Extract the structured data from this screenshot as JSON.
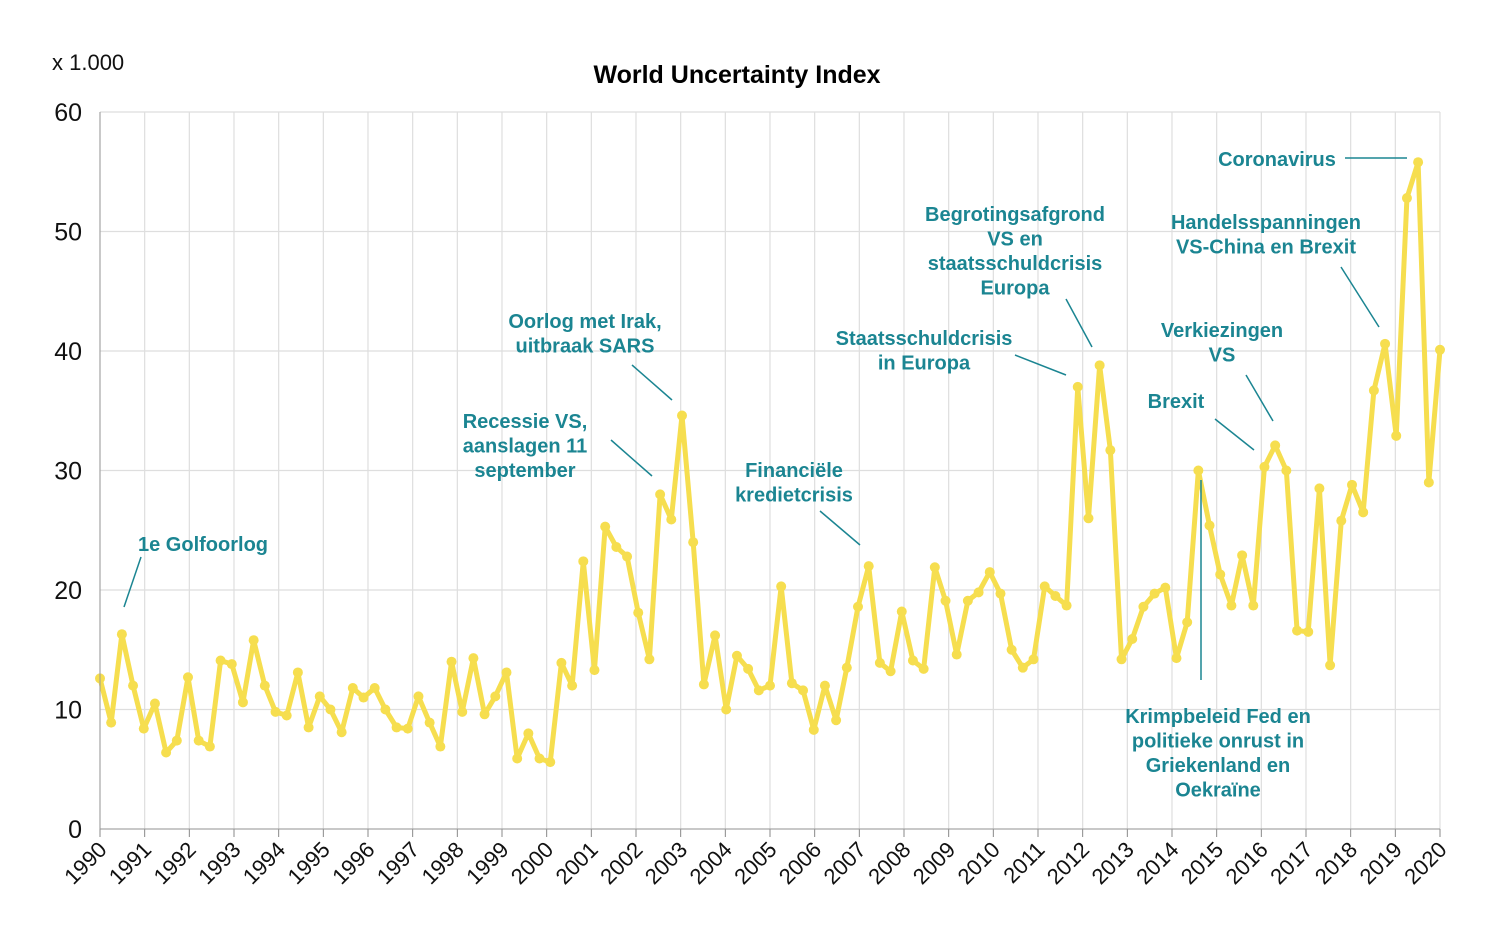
{
  "chart_data": {
    "type": "line",
    "title": "World Uncertainty Index",
    "unit_label": "x 1.000",
    "x": [
      1990.0,
      1990.25,
      1990.49,
      1990.74,
      1990.98,
      1991.23,
      1991.48,
      1991.72,
      1991.97,
      1992.21,
      1992.46,
      1992.7,
      1992.95,
      1993.2,
      1993.44,
      1993.69,
      1993.93,
      1994.18,
      1994.43,
      1994.67,
      1994.92,
      1995.16,
      1995.41,
      1995.66,
      1995.9,
      1996.15,
      1996.39,
      1996.64,
      1996.89,
      1997.13,
      1997.38,
      1997.62,
      1997.87,
      1998.11,
      1998.36,
      1998.61,
      1998.85,
      1999.1,
      1999.34,
      1999.59,
      1999.84,
      2000.08,
      2000.33,
      2000.57,
      2000.82,
      2001.07,
      2001.31,
      2001.56,
      2001.8,
      2002.05,
      2002.3,
      2002.54,
      2002.79,
      2003.03,
      2003.28,
      2003.52,
      2003.77,
      2004.02,
      2004.26,
      2004.51,
      2004.75,
      2005.0,
      2005.25,
      2005.49,
      2005.74,
      2005.98,
      2006.23,
      2006.48,
      2006.72,
      2006.97,
      2007.21,
      2007.46,
      2007.7,
      2007.95,
      2008.2,
      2008.44,
      2008.69,
      2008.93,
      2009.18,
      2009.43,
      2009.67,
      2009.92,
      2010.16,
      2010.41,
      2010.66,
      2010.9,
      2011.15,
      2011.39,
      2011.64,
      2011.89,
      2012.13,
      2012.38,
      2012.62,
      2012.87,
      2013.11,
      2013.36,
      2013.61,
      2013.85,
      2014.1,
      2014.34,
      2014.59,
      2014.84,
      2015.08,
      2015.33,
      2015.57,
      2015.82,
      2016.07,
      2016.31,
      2016.56,
      2016.8,
      2017.05,
      2017.3,
      2017.54,
      2017.79,
      2018.03,
      2018.28,
      2018.52,
      2018.77,
      2019.02,
      2019.26,
      2019.51,
      2019.75,
      2020.0
    ],
    "series": [
      {
        "name": "World Uncertainty Index",
        "color": "#f6de4f",
        "values": [
          12.6,
          8.9,
          16.3,
          12.0,
          8.4,
          10.5,
          6.4,
          7.4,
          12.7,
          7.4,
          6.9,
          14.1,
          13.8,
          10.6,
          15.8,
          12.0,
          9.8,
          9.5,
          13.1,
          8.5,
          11.1,
          10.0,
          8.1,
          11.8,
          11.0,
          11.8,
          10.0,
          8.5,
          8.4,
          11.1,
          8.9,
          6.9,
          14.0,
          9.8,
          14.3,
          9.6,
          11.1,
          13.1,
          5.9,
          8.0,
          5.9,
          5.6,
          13.9,
          12.0,
          22.4,
          13.3,
          25.3,
          23.6,
          22.8,
          18.1,
          14.2,
          28.0,
          25.9,
          34.6,
          24.0,
          12.1,
          16.2,
          10.0,
          14.5,
          13.4,
          11.6,
          12.0,
          20.3,
          12.2,
          11.6,
          8.3,
          12.0,
          9.1,
          13.5,
          18.6,
          22.0,
          13.9,
          13.2,
          18.2,
          14.1,
          13.4,
          21.9,
          19.1,
          14.6,
          19.1,
          19.8,
          21.5,
          19.7,
          15.0,
          13.5,
          14.2,
          20.3,
          19.5,
          18.7,
          37.0,
          26.0,
          38.8,
          31.7,
          14.2,
          15.9,
          18.6,
          19.7,
          20.2,
          14.3,
          17.3,
          30.0,
          25.4,
          21.3,
          18.7,
          22.9,
          18.7,
          30.3,
          32.1,
          30.0,
          16.6,
          16.5,
          28.5,
          13.7,
          25.8,
          28.8,
          26.5,
          36.7,
          40.6,
          32.9,
          52.8,
          55.8,
          29.0,
          40.1
        ]
      }
    ],
    "xlim": [
      1990,
      2020
    ],
    "xticks": [
      1990,
      1991,
      1992,
      1993,
      1994,
      1995,
      1996,
      1997,
      1998,
      1999,
      2000,
      2001,
      2002,
      2003,
      2004,
      2005,
      2006,
      2007,
      2008,
      2009,
      2010,
      2011,
      2012,
      2013,
      2014,
      2015,
      2016,
      2017,
      2018,
      2019,
      2020
    ],
    "ylim": [
      0,
      60
    ],
    "yticks": [
      0,
      10,
      20,
      30,
      40,
      50,
      60
    ],
    "grid": true,
    "annotation_color": "#1b8592",
    "annotations": [
      [
        "1e Golfoorlog"
      ],
      [
        "Recessie VS,",
        "aanslagen 11",
        "september"
      ],
      [
        "Oorlog met Irak,",
        "uitbraak SARS"
      ],
      [
        "Financiële",
        "kredietcrisis"
      ],
      [
        "Staatsschuldcrisis",
        "in Europa"
      ],
      [
        "Begrotingsafgrond",
        "VS en",
        "staatsschuldcrisis",
        "Europa"
      ],
      [
        "Brexit"
      ],
      [
        "Verkiezingen",
        "VS"
      ],
      [
        "Krimpbeleid Fed en",
        "politieke onrust in",
        "Griekenland en",
        "Oekraïne"
      ],
      [
        "Handelsspanningen",
        "VS-China en Brexit"
      ],
      [
        "Coronavirus"
      ]
    ]
  }
}
